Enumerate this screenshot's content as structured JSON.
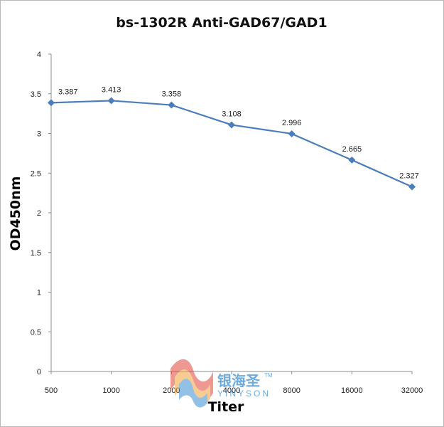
{
  "chart_data": {
    "type": "line",
    "title": "bs-1302R  Anti-GAD67/GAD1",
    "xlabel": "Titer",
    "ylabel": "OD450nm",
    "categories": [
      "500",
      "1000",
      "2000",
      "4000",
      "8000",
      "16000",
      "32000"
    ],
    "series": [
      {
        "values": [
          3.387,
          3.413,
          3.358,
          3.108,
          2.996,
          2.665,
          2.327
        ]
      }
    ],
    "data_labels": [
      "3.387",
      "3.413",
      "3.358",
      "3.108",
      "2.996",
      "2.665",
      "2.327"
    ],
    "ylim": [
      0,
      4
    ],
    "yticks": [
      0,
      0.5,
      1,
      1.5,
      2,
      2.5,
      3,
      3.5,
      4
    ],
    "ytick_labels": [
      "0",
      "0.5",
      "1",
      "1.5",
      "2",
      "2.5",
      "3",
      "3.5",
      "4"
    ],
    "grid": false,
    "legend": "none",
    "line_color": "#4a7ebb",
    "marker": "diamond"
  },
  "watermark": {
    "chinese": "银海圣",
    "english": "YINYSON",
    "tm": "TM",
    "logo": "wave-logo-icon"
  }
}
